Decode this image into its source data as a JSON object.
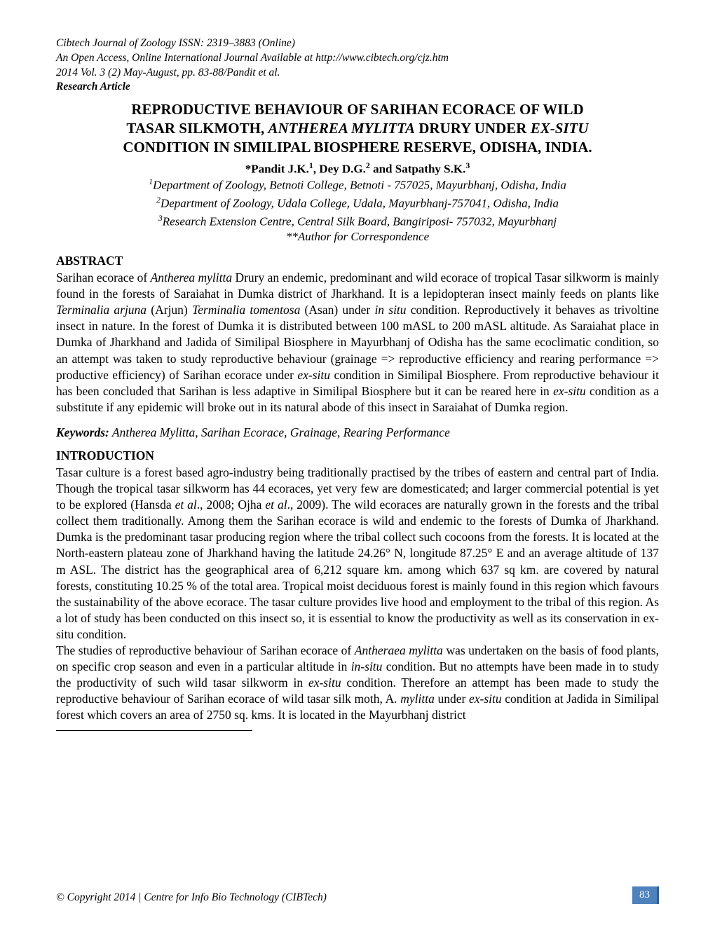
{
  "journal_header": {
    "line1": "Cibtech Journal of Zoology ISSN: 2319–3883 (Online)",
    "line2": "An Open Access, Online International Journal Available at http://www.cibtech.org/cjz.htm",
    "line3": "2014 Vol. 3 (2) May-August, pp. 83-88/Pandit et al.",
    "article_type": "Research Article"
  },
  "title": {
    "line1": "REPRODUCTIVE BEHAVIOUR OF SARIHAN ECORACE OF WILD",
    "line2_pre": "TASAR SILKMOTH, ",
    "line2_italic": "ANTHEREA MYLITTA",
    "line2_mid": " DRURY UNDER ",
    "line2_italic2": "EX-SITU",
    "line3": "CONDITION IN SIMILIPAL BIOSPHERE RESERVE, ODISHA, INDIA."
  },
  "authors": "*Pandit J.K.¹, Dey D.G.² and Satpathy S.K.³",
  "affiliations": {
    "a1": "¹Department of Zoology, Betnoti College, Betnoti -  757025, Mayurbhanj, Odisha, India",
    "a2": "²Department of Zoology, Udala College, Udala, Mayurbhanj-757041, Odisha, India",
    "a3": "³Research Extension Centre, Central Silk Board, Bangiriposi- 757032, Mayurbhanj",
    "corr": "*Author for Correspondence"
  },
  "abstract": {
    "heading": "ABSTRACT",
    "p1_a": "Sarihan ecorace of ",
    "p1_i1": "Antherea mylitta",
    "p1_b": " Drury an endemic, predominant and wild ecorace of tropical Tasar silkworm is mainly found in the forests of Saraiahat in Dumka district of Jharkhand. It is a lepidopteran insect mainly feeds on plants like ",
    "p1_i2": "Terminalia arjuna",
    "p1_c": " (Arjun) ",
    "p1_i3": "Terminalia tomentosa",
    "p1_d": " (Asan) under ",
    "p1_i4": "in situ",
    "p1_e": " condition. Reproductively it behaves as trivoltine insect in nature. In the forest of Dumka it is distributed between 100 mASL to 200 mASL altitude. As Saraiahat place in Dumka of Jharkhand and Jadida of Similipal Biosphere in Mayurbhanj of Odisha has the same ecoclimatic condition, so an attempt was taken to study reproductive behaviour (grainage => reproductive efficiency  and rearing performance => productive efficiency) of Sarihan ecorace under ",
    "p1_i5": "ex-situ",
    "p1_f": " condition in Similipal Biosphere. From reproductive behaviour it has been concluded that Sarihan is less adaptive in Similipal Biosphere but it can be reared here in ",
    "p1_i6": "ex-situ",
    "p1_g": " condition as a substitute if any epidemic will broke out in its natural abode of this insect in Saraiahat of Dumka region."
  },
  "keywords": {
    "label": "Keywords:",
    "values": " Antherea Mylitta, Sarihan Ecorace, Grainage, Rearing Performance"
  },
  "introduction": {
    "heading": "INTRODUCTION",
    "p1_a": "Tasar culture is a forest based agro-industry being traditionally practised by the tribes of eastern and central part of India. Though the tropical tasar silkworm has 44 ecoraces, yet very few are domesticated; and larger commercial potential is yet to be explored (Hansda ",
    "p1_i1": "et al",
    "p1_b": "., 2008; Ojha ",
    "p1_i2": "et al",
    "p1_c": "., 2009). The wild ecoraces are naturally grown in the forests and the tribal collect them traditionally. Among them the Sarihan ecorace is wild and endemic to the forests of Dumka of Jharkhand. Dumka is the predominant tasar producing region where the tribal collect such cocoons from the forests. It is located at the North-eastern plateau zone of Jharkhand having the latitude 24.26° N, longitude 87.25° E and an average altitude of 137 m ASL. The district has the geographical area of 6,212 square km. among which 637 sq km. are covered by natural forests, constituting 10.25 % of the total area. Tropical moist deciduous forest is mainly found in this region which favours the sustainability of the above ecorace. The tasar culture provides live hood and employment to the tribal of this region. As a lot of study has been conducted on this insect so, it is essential to know the productivity as well as its conservation in ex-situ condition.",
    "p2_a": "The studies of reproductive behaviour of Sarihan ecorace of ",
    "p2_i1": "Antheraea mylitta",
    "p2_b": " was undertaken on the basis of food plants, on specific crop season and even in a particular altitude in ",
    "p2_i2": "in-situ",
    "p2_c": " condition. But no attempts have been made in to study the productivity of such wild tasar silkworm in ",
    "p2_i3": "ex-situ",
    "p2_d": " condition. Therefore an attempt has been made to study the reproductive behaviour of Sarihan ecorace of wild tasar silk moth, A",
    "p2_i4": ". mylitta",
    "p2_e": " under ",
    "p2_i5": "ex-situ",
    "p2_f": " condition at Jadida in Similipal forest which covers an area of 2750 sq. kms. It is located in the Mayurbhanj district"
  },
  "footer": {
    "copyright": "© Copyright 2014 | Centre for Info Bio Technology (CIBTech)",
    "page_number": "83"
  },
  "colors": {
    "page_bg": "#ffffff",
    "text": "#000000",
    "pagenum_bg": "#4f81bd",
    "pagenum_border": "#385d8a",
    "pagenum_text": "#ffffff"
  },
  "typography": {
    "body_fontsize_pt": 12,
    "title_fontsize_pt": 14,
    "header_fontsize_pt": 10.5,
    "font_family": "Times New Roman"
  }
}
